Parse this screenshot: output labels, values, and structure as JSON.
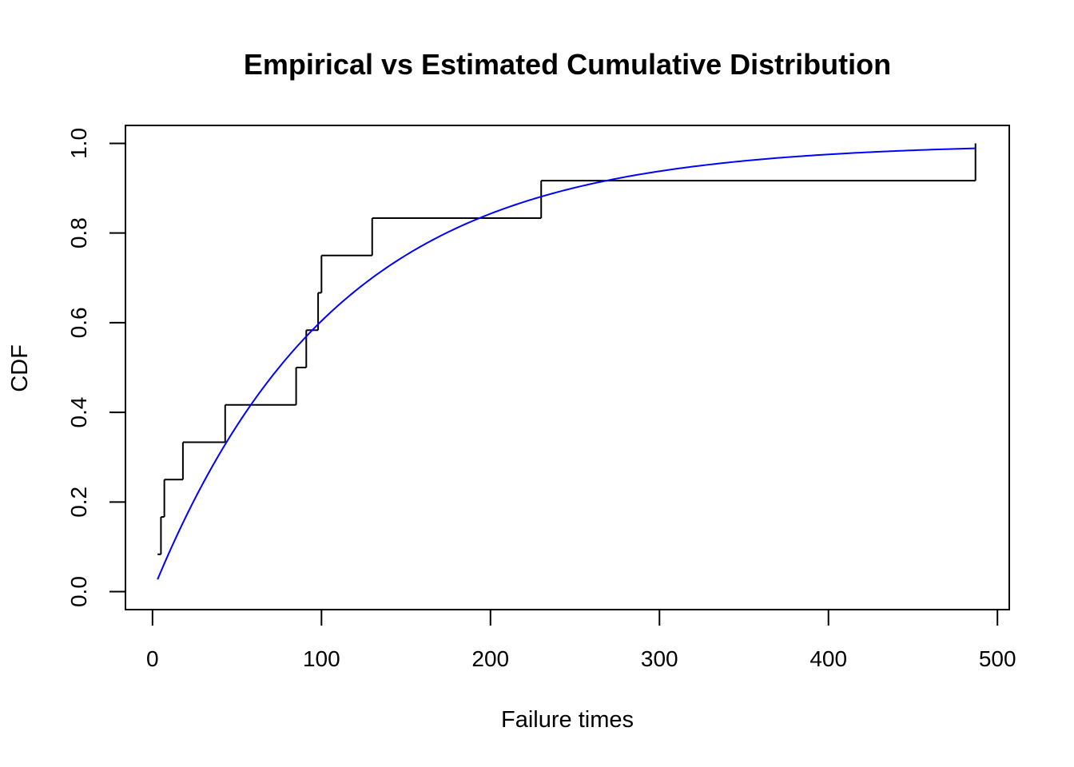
{
  "chart_data": {
    "type": "line",
    "title": "Empirical vs Estimated Cumulative Distribution",
    "xlabel": "Failure times",
    "ylabel": "CDF",
    "xlim": [
      -16,
      507
    ],
    "ylim": [
      -0.04,
      1.04
    ],
    "x_ticks": [
      0,
      100,
      200,
      300,
      400,
      500
    ],
    "y_ticks": [
      0.0,
      0.2,
      0.4,
      0.6,
      0.8,
      1.0
    ],
    "x_tick_labels": [
      "0",
      "100",
      "200",
      "300",
      "400",
      "500"
    ],
    "y_tick_labels": [
      "0.0",
      "0.2",
      "0.4",
      "0.6",
      "0.8",
      "1.0"
    ],
    "grid": false,
    "series": [
      {
        "kind": "empirical-step",
        "color": "#000000",
        "failure_times": [
          3,
          5,
          7,
          18,
          43,
          85,
          91,
          98,
          100,
          130,
          230,
          487
        ],
        "cdf": [
          0.0833,
          0.1667,
          0.25,
          0.3333,
          0.4167,
          0.5,
          0.5833,
          0.6667,
          0.75,
          0.8333,
          0.9167,
          1.0
        ]
      },
      {
        "kind": "estimated-curve",
        "color": "#0000ff",
        "function": "exponential",
        "rate": 0.00926,
        "x_range": [
          3,
          487
        ]
      }
    ]
  }
}
